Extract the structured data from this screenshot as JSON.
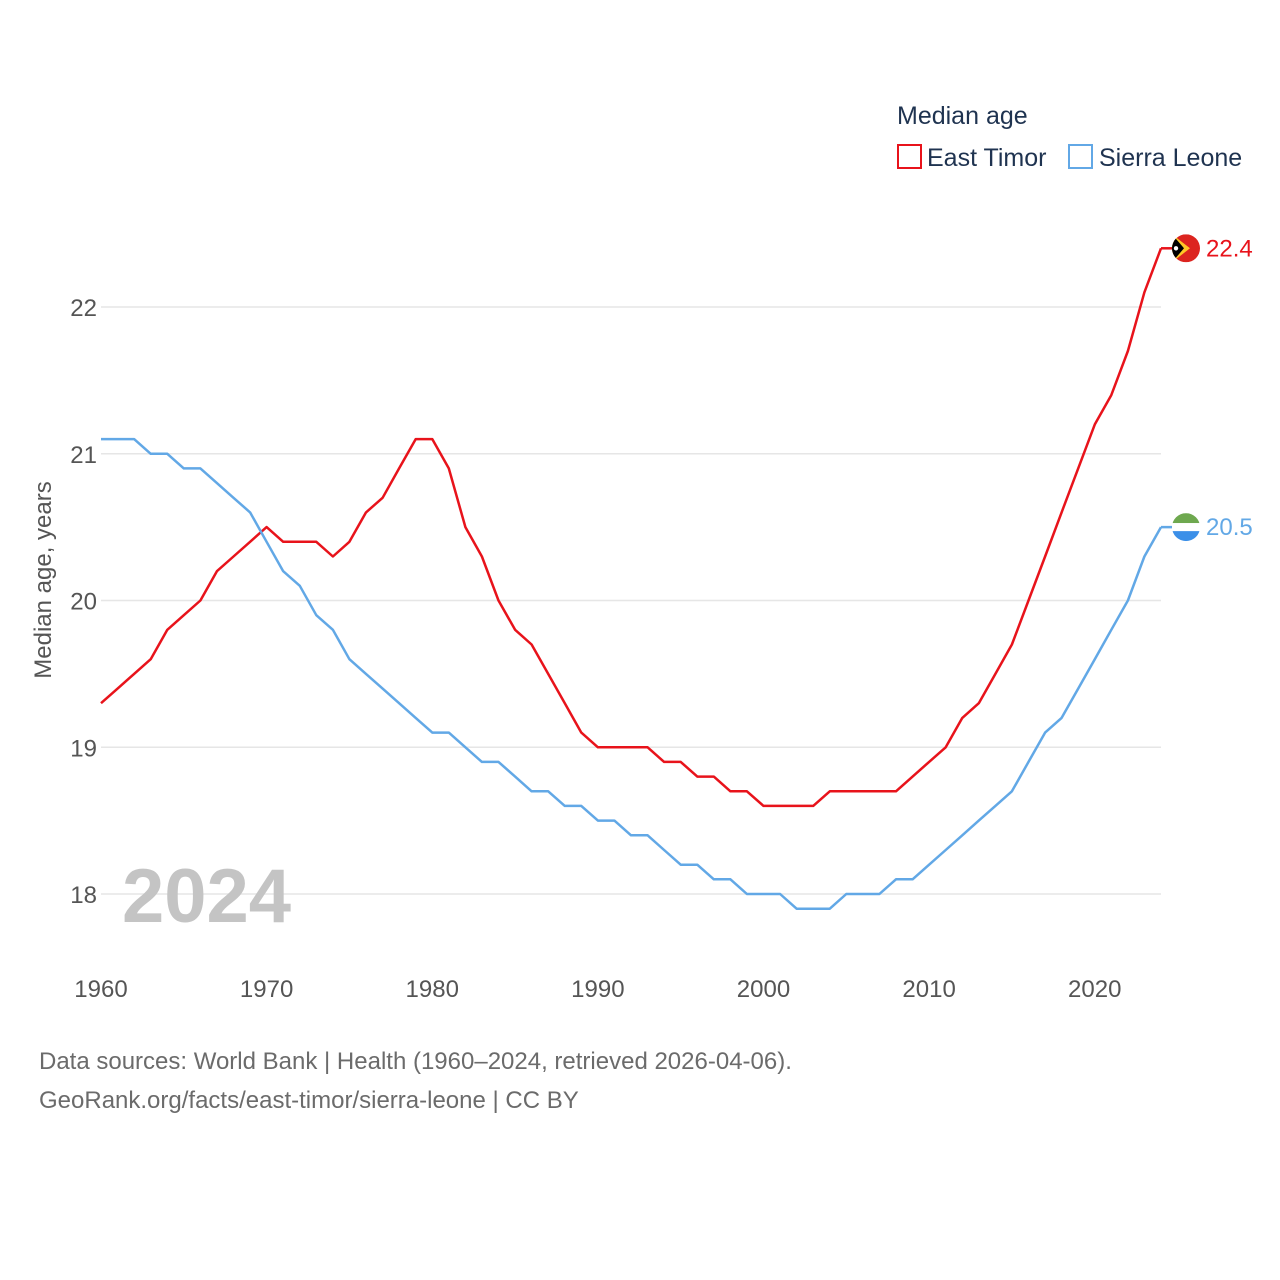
{
  "legend": {
    "title": "Median age"
  },
  "year_label": "2024",
  "source": {
    "line1": "Data sources: World Bank | Health (1960–2024, retrieved 2026-04-06).",
    "line2": "GeoRank.org/facts/east-timor/sierra-leone | CC BY"
  },
  "chart_data": {
    "type": "line",
    "title": "Median age",
    "xlabel": "",
    "ylabel": "Median age, years",
    "xlim": [
      1960,
      2024
    ],
    "ylim": [
      17.6,
      22.6
    ],
    "x_ticks": [
      1960,
      1970,
      1980,
      1990,
      2000,
      2010,
      2020
    ],
    "y_ticks": [
      18,
      19,
      20,
      21,
      22
    ],
    "grid": true,
    "legend_position": "top-right",
    "x": [
      1960,
      1961,
      1962,
      1963,
      1964,
      1965,
      1966,
      1967,
      1968,
      1969,
      1970,
      1971,
      1972,
      1973,
      1974,
      1975,
      1976,
      1977,
      1978,
      1979,
      1980,
      1981,
      1982,
      1983,
      1984,
      1985,
      1986,
      1987,
      1988,
      1989,
      1990,
      1991,
      1992,
      1993,
      1994,
      1995,
      1996,
      1997,
      1998,
      1999,
      2000,
      2001,
      2002,
      2003,
      2004,
      2005,
      2006,
      2007,
      2008,
      2009,
      2010,
      2011,
      2012,
      2013,
      2014,
      2015,
      2016,
      2017,
      2018,
      2019,
      2020,
      2021,
      2022,
      2023,
      2024
    ],
    "series": [
      {
        "name": "East Timor",
        "color": "#e8131b",
        "end_label": "22.4",
        "flag": "east-timor-flag-icon",
        "values": [
          19.3,
          19.4,
          19.5,
          19.6,
          19.8,
          19.9,
          20.0,
          20.2,
          20.3,
          20.4,
          20.5,
          20.4,
          20.4,
          20.4,
          20.3,
          20.4,
          20.6,
          20.7,
          20.9,
          21.1,
          21.1,
          20.9,
          20.5,
          20.3,
          20.0,
          19.8,
          19.7,
          19.5,
          19.3,
          19.1,
          19.0,
          19.0,
          19.0,
          19.0,
          18.9,
          18.9,
          18.8,
          18.8,
          18.7,
          18.7,
          18.6,
          18.6,
          18.6,
          18.6,
          18.7,
          18.7,
          18.7,
          18.7,
          18.7,
          18.8,
          18.9,
          19.0,
          19.2,
          19.3,
          19.5,
          19.7,
          20.0,
          20.3,
          20.6,
          20.9,
          21.2,
          21.4,
          21.7,
          22.1,
          22.4
        ]
      },
      {
        "name": "Sierra Leone",
        "color": "#62a8e6",
        "end_label": "20.5",
        "flag": "sierra-leone-flag-icon",
        "values": [
          21.1,
          21.1,
          21.1,
          21.0,
          21.0,
          20.9,
          20.9,
          20.8,
          20.7,
          20.6,
          20.4,
          20.2,
          20.1,
          19.9,
          19.8,
          19.6,
          19.5,
          19.4,
          19.3,
          19.2,
          19.1,
          19.1,
          19.0,
          18.9,
          18.9,
          18.8,
          18.7,
          18.7,
          18.6,
          18.6,
          18.5,
          18.5,
          18.4,
          18.4,
          18.3,
          18.2,
          18.2,
          18.1,
          18.1,
          18.0,
          18.0,
          18.0,
          17.9,
          17.9,
          17.9,
          18.0,
          18.0,
          18.0,
          18.1,
          18.1,
          18.2,
          18.3,
          18.4,
          18.5,
          18.6,
          18.7,
          18.9,
          19.1,
          19.2,
          19.4,
          19.6,
          19.8,
          20.0,
          20.3,
          20.5
        ]
      }
    ]
  }
}
